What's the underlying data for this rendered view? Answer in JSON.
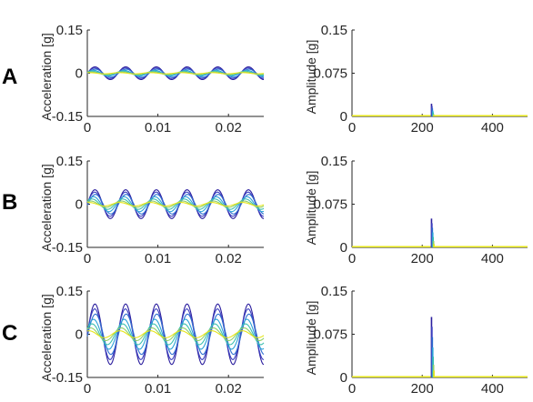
{
  "panel_labels": [
    "A",
    "B",
    "C"
  ],
  "chart_data": [
    {
      "type": "line",
      "panel": "A",
      "ylabel": "Acceleration [g]",
      "xlim": [
        0,
        0.025
      ],
      "ylim": [
        -0.15,
        0.15
      ],
      "xticks": [
        0,
        0.01,
        0.02
      ],
      "xtick_labels": [
        "0",
        "0.01",
        "0.02"
      ],
      "yticks": [
        -0.15,
        0,
        0.15
      ],
      "ytick_labels": [
        "-0.15",
        "0",
        "0.15"
      ],
      "signal_frequency_hz": 230,
      "series": [
        {
          "amplitude": 0.022,
          "phase": 0.0,
          "color": "#2b1e9e"
        },
        {
          "amplitude": 0.018,
          "phase": 0.05,
          "color": "#3a3ec0"
        },
        {
          "amplitude": 0.014,
          "phase": -0.1,
          "color": "#2f6fd0"
        },
        {
          "amplitude": 0.01,
          "phase": 0.3,
          "color": "#2ba2d8"
        },
        {
          "amplitude": 0.007,
          "phase": 0.6,
          "color": "#3cbfb0"
        },
        {
          "amplitude": 0.004,
          "phase": 0.9,
          "color": "#8fcf6a"
        },
        {
          "amplitude": 0.002,
          "phase": 1.2,
          "color": "#e5e51a"
        }
      ]
    },
    {
      "type": "bar",
      "panel": "A",
      "ylabel": "Amplitude [g]",
      "xlim": [
        0,
        500
      ],
      "ylim": [
        0,
        0.15
      ],
      "xticks": [
        0,
        200,
        400
      ],
      "xtick_labels": [
        "0",
        "200",
        "400"
      ],
      "yticks": [
        0,
        0.075,
        0.15
      ],
      "ytick_labels": [
        "0",
        "0.075",
        "0.15"
      ],
      "peak_frequency_hz": 230,
      "series": [
        {
          "amplitude": 0.022,
          "color": "#2b1e9e"
        },
        {
          "amplitude": 0.018,
          "color": "#3a3ec0"
        },
        {
          "amplitude": 0.014,
          "color": "#2f6fd0"
        },
        {
          "amplitude": 0.01,
          "color": "#2ba2d8"
        },
        {
          "amplitude": 0.007,
          "color": "#3cbfb0"
        },
        {
          "amplitude": 0.004,
          "color": "#8fcf6a"
        },
        {
          "amplitude": 0.002,
          "color": "#e5e51a"
        }
      ]
    },
    {
      "type": "line",
      "panel": "B",
      "ylabel": "Acceleration [g]",
      "xlim": [
        0,
        0.025
      ],
      "ylim": [
        -0.15,
        0.15
      ],
      "xticks": [
        0,
        0.01,
        0.02
      ],
      "xtick_labels": [
        "0",
        "0.01",
        "0.02"
      ],
      "yticks": [
        -0.15,
        0,
        0.15
      ],
      "ytick_labels": [
        "-0.15",
        "0",
        "0.15"
      ],
      "signal_frequency_hz": 230,
      "series": [
        {
          "amplitude": 0.05,
          "phase": 0.0,
          "color": "#2b1e9e"
        },
        {
          "amplitude": 0.042,
          "phase": 0.05,
          "color": "#3a3ec0"
        },
        {
          "amplitude": 0.034,
          "phase": -0.1,
          "color": "#2f6fd0"
        },
        {
          "amplitude": 0.026,
          "phase": 0.3,
          "color": "#2ba2d8"
        },
        {
          "amplitude": 0.018,
          "phase": 0.6,
          "color": "#3cbfb0"
        },
        {
          "amplitude": 0.011,
          "phase": 0.9,
          "color": "#8fcf6a"
        },
        {
          "amplitude": 0.006,
          "phase": 1.2,
          "color": "#e5e51a"
        }
      ]
    },
    {
      "type": "bar",
      "panel": "B",
      "ylabel": "Amplitude [g]",
      "xlim": [
        0,
        500
      ],
      "ylim": [
        0,
        0.15
      ],
      "xticks": [
        0,
        200,
        400
      ],
      "xtick_labels": [
        "0",
        "200",
        "400"
      ],
      "yticks": [
        0,
        0.075,
        0.15
      ],
      "ytick_labels": [
        "0",
        "0.075",
        "0.15"
      ],
      "peak_frequency_hz": 230,
      "series": [
        {
          "amplitude": 0.05,
          "color": "#2b1e9e"
        },
        {
          "amplitude": 0.042,
          "color": "#3a3ec0"
        },
        {
          "amplitude": 0.034,
          "color": "#2f6fd0"
        },
        {
          "amplitude": 0.026,
          "color": "#2ba2d8"
        },
        {
          "amplitude": 0.018,
          "color": "#3cbfb0"
        },
        {
          "amplitude": 0.011,
          "color": "#8fcf6a"
        },
        {
          "amplitude": 0.006,
          "color": "#e5e51a"
        }
      ]
    },
    {
      "type": "line",
      "panel": "C",
      "ylabel": "Acceleration [g]",
      "xlim": [
        0,
        0.025
      ],
      "ylim": [
        -0.15,
        0.15
      ],
      "xticks": [
        0,
        0.01,
        0.02
      ],
      "xtick_labels": [
        "0",
        "0.01",
        "0.02"
      ],
      "yticks": [
        -0.15,
        0,
        0.15
      ],
      "ytick_labels": [
        "-0.15",
        "0",
        "0.15"
      ],
      "signal_frequency_hz": 230,
      "series": [
        {
          "amplitude": 0.105,
          "phase": 0.0,
          "color": "#2b1e9e"
        },
        {
          "amplitude": 0.088,
          "phase": 0.05,
          "color": "#3a3ec0"
        },
        {
          "amplitude": 0.07,
          "phase": -0.1,
          "color": "#2f6fd0"
        },
        {
          "amplitude": 0.052,
          "phase": 0.3,
          "color": "#2ba2d8"
        },
        {
          "amplitude": 0.036,
          "phase": 0.6,
          "color": "#3cbfb0"
        },
        {
          "amplitude": 0.022,
          "phase": 0.9,
          "color": "#8fcf6a"
        },
        {
          "amplitude": 0.012,
          "phase": 1.2,
          "color": "#e5e51a"
        }
      ]
    },
    {
      "type": "bar",
      "panel": "C",
      "ylabel": "Amplitude [g]",
      "xlim": [
        0,
        500
      ],
      "ylim": [
        0,
        0.15
      ],
      "xticks": [
        0,
        200,
        400
      ],
      "xtick_labels": [
        "0",
        "200",
        "400"
      ],
      "yticks": [
        0,
        0.075,
        0.15
      ],
      "ytick_labels": [
        "0",
        "0.075",
        "0.15"
      ],
      "peak_frequency_hz": 230,
      "series": [
        {
          "amplitude": 0.105,
          "color": "#2b1e9e"
        },
        {
          "amplitude": 0.088,
          "color": "#3a3ec0"
        },
        {
          "amplitude": 0.07,
          "color": "#2f6fd0"
        },
        {
          "amplitude": 0.052,
          "color": "#2ba2d8"
        },
        {
          "amplitude": 0.036,
          "color": "#3cbfb0"
        },
        {
          "amplitude": 0.022,
          "color": "#8fcf6a"
        },
        {
          "amplitude": 0.012,
          "color": "#e5e51a"
        }
      ]
    }
  ]
}
